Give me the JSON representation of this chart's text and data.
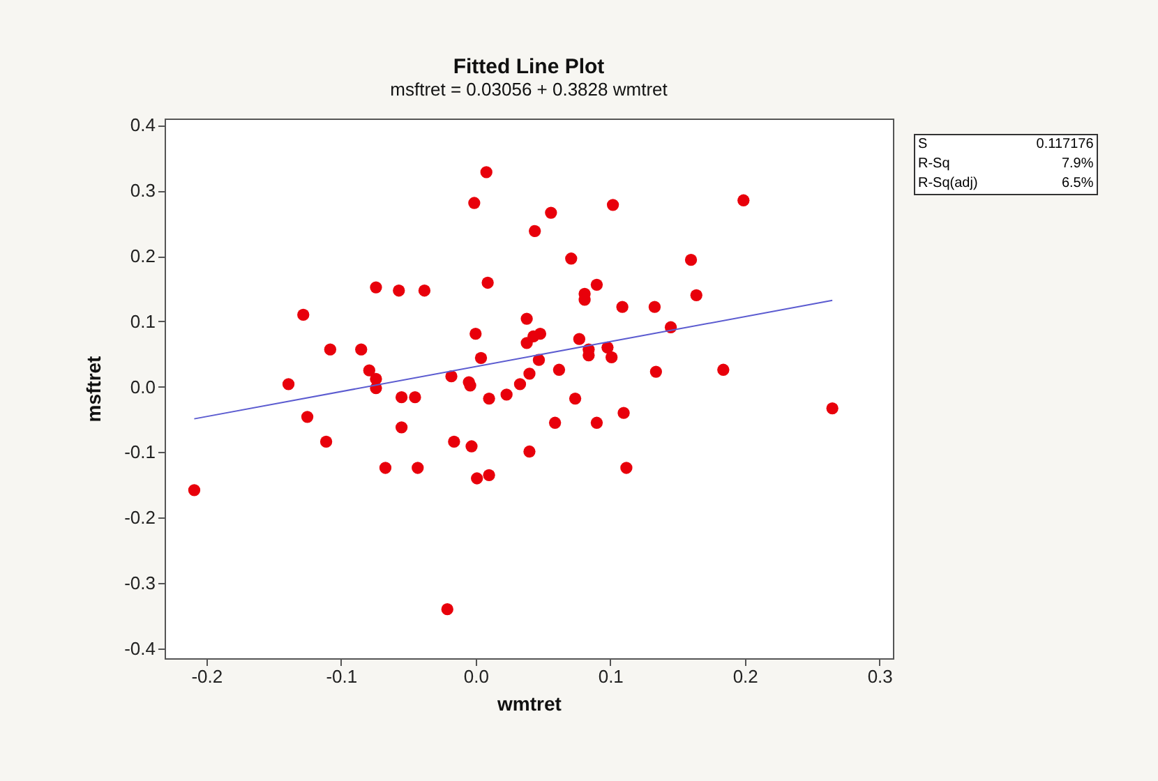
{
  "chart_data": {
    "type": "scatter",
    "title": "Fitted Line Plot",
    "subtitle": "msftret = 0.03056 + 0.3828 wmtret",
    "xlabel": "wmtret",
    "ylabel": "msftret",
    "xlim": [
      -0.231,
      0.31
    ],
    "ylim": [
      -0.415,
      0.41
    ],
    "xticks": [
      {
        "value": -0.2,
        "label": "-0.2"
      },
      {
        "value": -0.1,
        "label": "-0.1"
      },
      {
        "value": 0,
        "label": "0.0"
      },
      {
        "value": 0.1,
        "label": "0.1"
      },
      {
        "value": 0.2,
        "label": "0.2"
      },
      {
        "value": 0.3,
        "label": "0.3"
      }
    ],
    "yticks": [
      {
        "value": -0.4,
        "label": "-0.4"
      },
      {
        "value": -0.3,
        "label": "-0.3"
      },
      {
        "value": -0.2,
        "label": "-0.2"
      },
      {
        "value": -0.1,
        "label": "-0.1"
      },
      {
        "value": 0,
        "label": "0.0"
      },
      {
        "value": 0.1,
        "label": "0.1"
      },
      {
        "value": 0.2,
        "label": "0.2"
      },
      {
        "value": 0.3,
        "label": "0.3"
      },
      {
        "value": 0.4,
        "label": "0.4"
      }
    ],
    "grid": false,
    "annotations": [
      "S 0.117176",
      "R-Sq 7.9%",
      "R-Sq(adj) 6.5%"
    ],
    "series": [
      {
        "marker": "circle",
        "color": "#e8000b",
        "x": [
          0.008,
          -0.001,
          0.009,
          -0.074,
          -0.057,
          -0.038,
          -0.128,
          0.0,
          -0.108,
          -0.085,
          -0.079,
          -0.074,
          -0.074,
          0.004,
          -0.018,
          -0.005,
          -0.004,
          -0.139,
          -0.055,
          -0.045,
          0.01,
          0.023,
          0.033,
          -0.125,
          -0.111,
          -0.055,
          -0.067,
          -0.043,
          -0.016,
          -0.003,
          0.001,
          0.01,
          0.04,
          -0.209,
          -0.021,
          0.102,
          0.199,
          0.056,
          0.044,
          0.071,
          0.16,
          0.09,
          0.081,
          0.081,
          0.164,
          0.109,
          0.133,
          0.038,
          0.145,
          0.048,
          0.043,
          0.038,
          0.077,
          0.084,
          0.084,
          0.098,
          0.101,
          0.047,
          0.04,
          0.062,
          0.134,
          0.184,
          0.074,
          0.059,
          0.09,
          0.11,
          0.112,
          0.265
        ],
        "values": [
          0.328,
          0.281,
          0.159,
          0.152,
          0.147,
          0.147,
          0.11,
          0.081,
          0.057,
          0.057,
          0.025,
          0.012,
          -0.002,
          0.044,
          0.016,
          0.007,
          0.002,
          0.004,
          -0.016,
          -0.016,
          -0.018,
          -0.012,
          0.004,
          -0.046,
          -0.084,
          -0.062,
          -0.124,
          -0.124,
          -0.084,
          -0.091,
          -0.14,
          -0.135,
          -0.099,
          -0.158,
          -0.34,
          0.278,
          0.285,
          0.266,
          0.238,
          0.196,
          0.194,
          0.156,
          0.142,
          0.133,
          0.14,
          0.122,
          0.122,
          0.104,
          0.091,
          0.081,
          0.077,
          0.067,
          0.073,
          0.057,
          0.048,
          0.06,
          0.045,
          0.041,
          0.02,
          0.026,
          0.023,
          0.026,
          -0.018,
          -0.055,
          -0.055,
          -0.04,
          -0.124,
          -0.033
        ]
      },
      {
        "type": "line",
        "color": "#5b5bd0",
        "x": [
          -0.209,
          0.265
        ],
        "values": [
          -0.049,
          0.132
        ]
      }
    ]
  }
}
